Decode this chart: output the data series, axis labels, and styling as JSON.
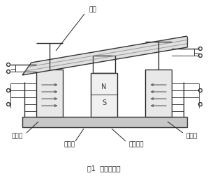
{
  "title": "图1  原理示意图",
  "label_yatie": "衔铁",
  "label_left": "左边柱",
  "label_right": "右边柱",
  "label_cibo": "磁轭板",
  "label_yongjiu": "永久磁铁",
  "bg_color": "#ffffff",
  "line_color": "#333333",
  "gray_color": "#999999",
  "text_color": "#222222",
  "lw_main": 1.0,
  "lw_thick": 1.5,
  "lw_thin": 0.7
}
